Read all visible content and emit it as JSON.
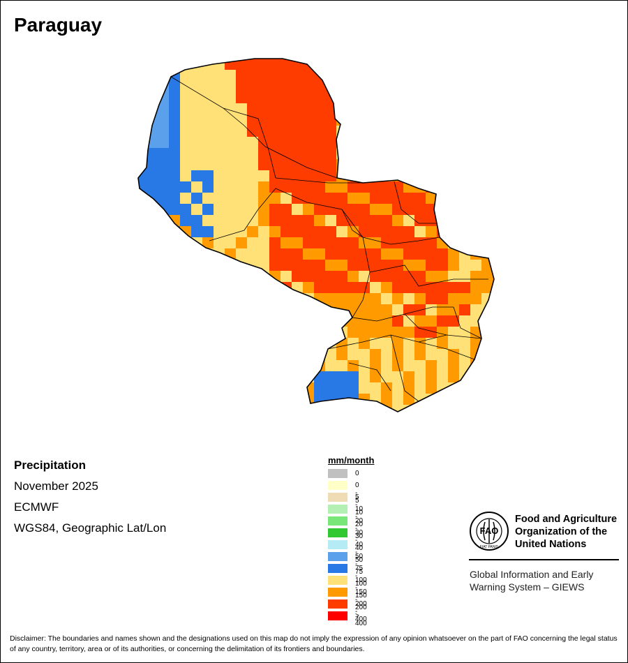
{
  "title": "Paraguay",
  "meta": {
    "variable": "Precipitation",
    "period": "November 2025",
    "model": "ECMWF",
    "projection": "WGS84, Geographic Lat/Lon"
  },
  "legend": {
    "unit": "mm/month",
    "classes": [
      {
        "label": "0",
        "color": "#c0c0c0"
      },
      {
        "label": "0 - 5",
        "color": "#ffffc8"
      },
      {
        "label": "5 - 10",
        "color": "#f0dcb4"
      },
      {
        "label": "10 - 20",
        "color": "#b4f0b4"
      },
      {
        "label": "20 - 30",
        "color": "#78e678"
      },
      {
        "label": "30 - 40",
        "color": "#32c832"
      },
      {
        "label": "40 - 50",
        "color": "#b4ebf5"
      },
      {
        "label": "50 - 75",
        "color": "#5aa0eb"
      },
      {
        "label": "75 - 100",
        "color": "#2878e6"
      },
      {
        "label": "100 - 150",
        "color": "#ffe178"
      },
      {
        "label": "150 - 200",
        "color": "#ff9b00"
      },
      {
        "label": "200 - 400",
        "color": "#ff3c00"
      },
      {
        "label": "> 400",
        "color": "#ff0000"
      }
    ]
  },
  "organization": {
    "name_line1": "Food and Agriculture",
    "name_line2": "Organization of the",
    "name_line3": "United Nations",
    "logo_text": "FAO",
    "logo_motto": "FIAT PANIS",
    "program_line1": "Global Information and Early",
    "program_line2": "Warning System – GIEWS"
  },
  "disclaimer": "Disclaimer: The boundaries and names shown and the designations used on this map do not imply the expression of any opinion whatsoever on the part of FAO concerning the legal status of any country, territory, area or of its authorities, or concerning the delimitation of its frontiers and boundaries."
}
